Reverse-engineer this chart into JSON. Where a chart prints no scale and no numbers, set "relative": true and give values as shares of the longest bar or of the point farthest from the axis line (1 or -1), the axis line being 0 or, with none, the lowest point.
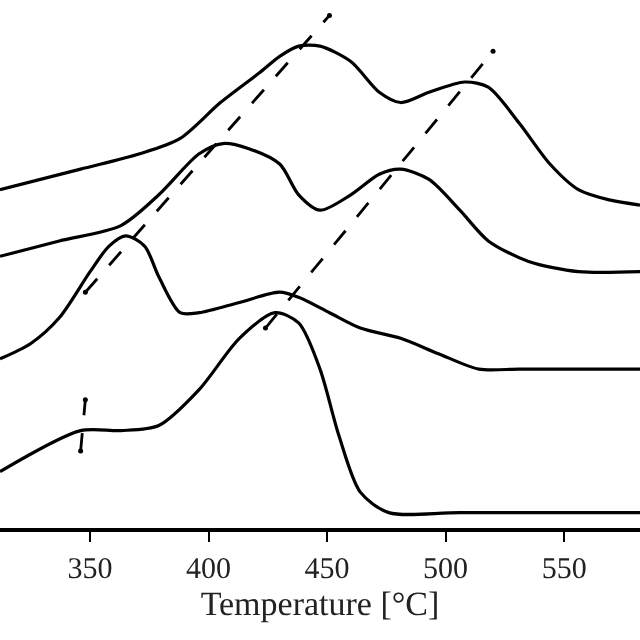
{
  "chart_data": {
    "type": "line",
    "xlabel": "Temperature [°C]",
    "relative": true,
    "xlim": [
      312,
      582
    ],
    "xticks": [
      350,
      400,
      450,
      500,
      550
    ],
    "marker": "none",
    "line_style": "solid",
    "tick_labels": "x",
    "series": [
      {
        "color": "#000000",
        "x": [
          312,
          346,
          371,
          388,
          405,
          422,
          430,
          438,
          447,
          460,
          472,
          481,
          493,
          508,
          518,
          531,
          544,
          556,
          569,
          582
        ],
        "values": [
          0.66,
          0.7,
          0.73,
          0.76,
          0.83,
          0.89,
          0.92,
          0.94,
          0.94,
          0.91,
          0.85,
          0.83,
          0.85,
          0.87,
          0.86,
          0.79,
          0.71,
          0.66,
          0.64,
          0.63
        ]
      },
      {
        "color": "#000000",
        "x": [
          312,
          337,
          363,
          379,
          396,
          406,
          417,
          430,
          438,
          447,
          460,
          472,
          481,
          493,
          506,
          518,
          535,
          556,
          582
        ],
        "values": [
          0.53,
          0.56,
          0.59,
          0.65,
          0.73,
          0.75,
          0.74,
          0.71,
          0.65,
          0.62,
          0.65,
          0.69,
          0.7,
          0.68,
          0.62,
          0.56,
          0.52,
          0.5,
          0.5
        ]
      },
      {
        "color": "#000000",
        "x": [
          312,
          325,
          337,
          350,
          358,
          365,
          373,
          379,
          388,
          396,
          413,
          430,
          438,
          451,
          464,
          481,
          497,
          514,
          531,
          556,
          582
        ],
        "values": [
          0.33,
          0.36,
          0.41,
          0.5,
          0.55,
          0.57,
          0.55,
          0.49,
          0.42,
          0.42,
          0.44,
          0.46,
          0.45,
          0.42,
          0.39,
          0.37,
          0.34,
          0.31,
          0.31,
          0.31,
          0.31
        ]
      },
      {
        "color": "#000000",
        "x": [
          312,
          346,
          363,
          379,
          396,
          413,
          428,
          438,
          447,
          455,
          464,
          476,
          506,
          582
        ],
        "values": [
          0.11,
          0.19,
          0.19,
          0.2,
          0.27,
          0.37,
          0.42,
          0.4,
          0.31,
          0.18,
          0.07,
          0.03,
          0.03,
          0.03
        ]
      },
      {
        "color": "#000000",
        "line_style": "dashed",
        "x": [
          348,
          451
        ],
        "values": [
          0.46,
          1.0
        ]
      },
      {
        "color": "#000000",
        "line_style": "dashed",
        "x": [
          424,
          520
        ],
        "values": [
          0.39,
          0.93
        ]
      },
      {
        "color": "#000000",
        "line_style": "dashed",
        "x": [
          346,
          348
        ],
        "values": [
          0.15,
          0.25
        ]
      }
    ]
  }
}
